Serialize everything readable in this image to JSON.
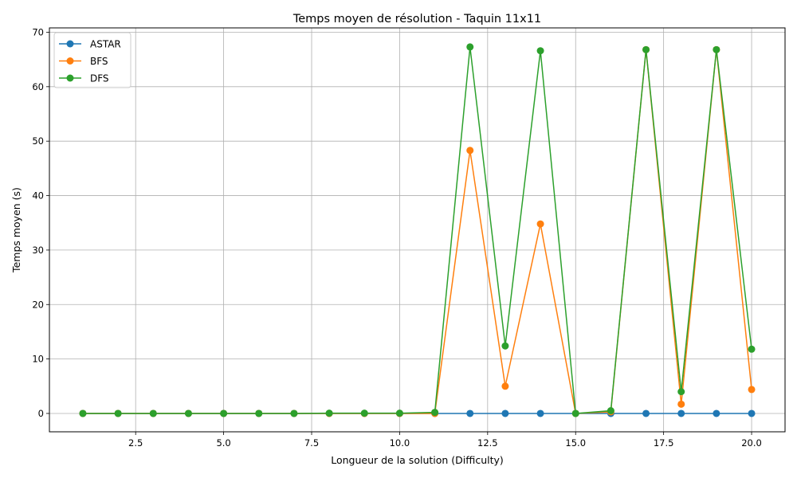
{
  "chart_data": {
    "type": "line",
    "title": "Temps moyen de résolution - Taquin 11x11",
    "xlabel": "Longueur de la solution (Difficulty)",
    "ylabel": "Temps moyen (s)",
    "xlim": [
      0.05,
      20.95
    ],
    "ylim": [
      -3.37,
      70.8
    ],
    "xticks": [
      2.5,
      5.0,
      7.5,
      10.0,
      12.5,
      15.0,
      17.5,
      20.0
    ],
    "xtick_labels": [
      "2.5",
      "5.0",
      "7.5",
      "10.0",
      "12.5",
      "15.0",
      "17.5",
      "20.0"
    ],
    "yticks": [
      0,
      10,
      20,
      30,
      40,
      50,
      60,
      70
    ],
    "ytick_labels": [
      "0",
      "10",
      "20",
      "30",
      "40",
      "50",
      "60",
      "70"
    ],
    "grid": true,
    "legend_position": "top-left",
    "x": [
      1,
      2,
      3,
      4,
      5,
      6,
      7,
      8,
      9,
      10,
      11,
      12,
      13,
      14,
      15,
      16,
      17,
      18,
      19,
      20
    ],
    "series": [
      {
        "name": "ASTAR",
        "color": "#1f77b4",
        "values": [
          0,
          0,
          0,
          0,
          0,
          0,
          0,
          0,
          0,
          0,
          0,
          0,
          0,
          0,
          0,
          0,
          0,
          0,
          0,
          0
        ]
      },
      {
        "name": "BFS",
        "color": "#ff7f0e",
        "values": [
          0,
          0,
          0,
          0,
          0,
          0,
          0,
          0,
          0,
          0,
          0,
          48.3,
          5.0,
          34.8,
          0,
          0.3,
          66.8,
          1.7,
          66.8,
          4.4
        ]
      },
      {
        "name": "DFS",
        "color": "#2ca02c",
        "values": [
          0,
          0,
          0,
          0,
          0,
          0,
          0,
          0.05,
          0.05,
          0.05,
          0.2,
          67.3,
          12.4,
          66.6,
          0,
          0.5,
          66.8,
          4.0,
          66.8,
          11.8
        ]
      }
    ]
  }
}
